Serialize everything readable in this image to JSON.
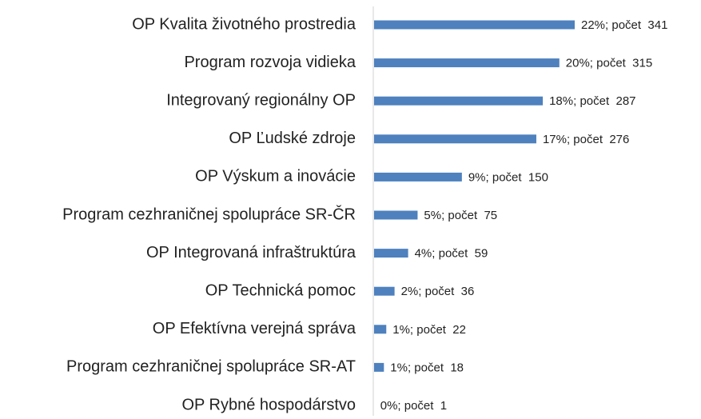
{
  "chart_data": {
    "type": "bar",
    "orientation": "horizontal",
    "color": "#4e81bd",
    "categories": [
      "OP Kvalita životného prostredia",
      "Program rozvoja vidieka",
      "Integrovaný regionálny OP",
      "OP Ľudské zdroje",
      "OP Výskum a inovácie",
      "Program cezhraničnej spolupráce SR-ČR",
      "OP Integrovaná infraštruktúra",
      "OP Technická pomoc",
      "OP Efektívna verejná správa",
      "Program cezhraničnej spolupráce SR-AT",
      "OP Rybné hospodárstvo"
    ],
    "values": [
      341,
      315,
      287,
      276,
      150,
      75,
      59,
      36,
      22,
      18,
      1
    ],
    "value_labels": [
      "22%; počet  341",
      "20%; počet  315",
      "18%; počet  287",
      "17%; počet  276",
      "9%; počet  150",
      "5%; počet  75",
      "4%; počet  59",
      "2%; počet  36",
      "1%; počet  22",
      "1%; počet  18",
      "0%; počet  1"
    ]
  }
}
